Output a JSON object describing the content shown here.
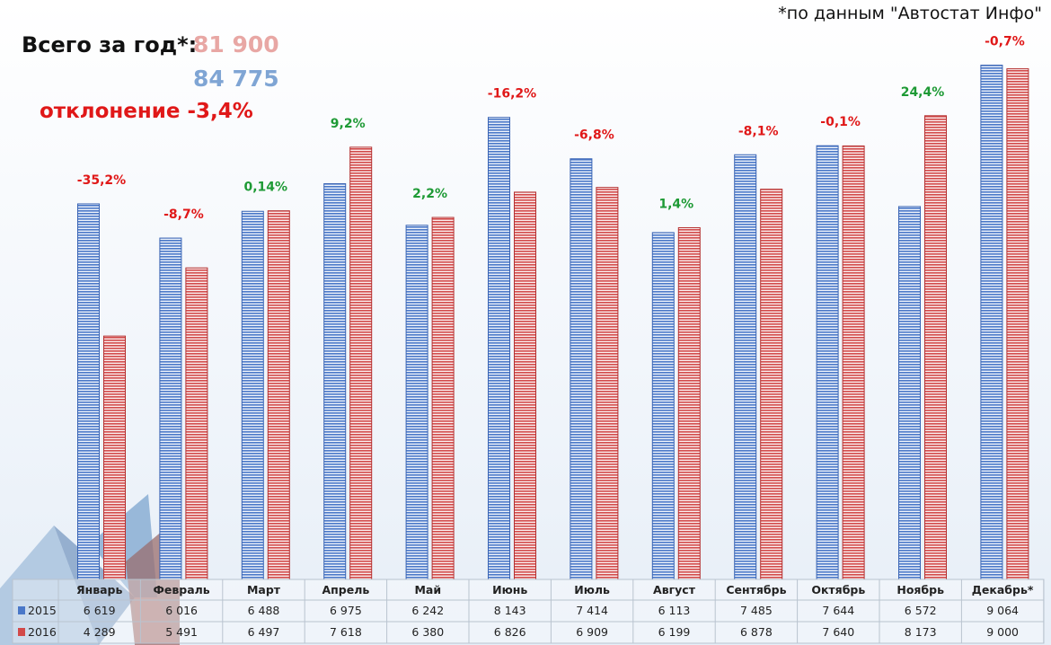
{
  "note": "*по данным \"Автостат Инфо\"",
  "summary": {
    "label": "Всего за год*:",
    "total_2016": "81 900",
    "total_2015": "84 775",
    "deviation_label": "отклонение -3,4%"
  },
  "colors": {
    "series_2015": "#4a78c8",
    "series_2016": "#d24a4a",
    "positive": "#1e9a35",
    "negative": "#e01818"
  },
  "chart_data": {
    "type": "bar",
    "title": "",
    "xlabel": "",
    "ylabel": "",
    "ylim": [
      0,
      9500
    ],
    "categories": [
      "Январь",
      "Февраль",
      "Март",
      "Апрель",
      "Май",
      "Июнь",
      "Июль",
      "Август",
      "Сентябрь",
      "Октябрь",
      "Ноябрь",
      "Декабрь*"
    ],
    "series": [
      {
        "name": "2015",
        "values": [
          6619,
          6016,
          6488,
          6975,
          6242,
          8143,
          7414,
          6113,
          7485,
          7644,
          6572,
          9064
        ],
        "labels": [
          "6 619",
          "6 016",
          "6 488",
          "6 975",
          "6 242",
          "8 143",
          "7 414",
          "6 113",
          "7 485",
          "7 644",
          "6 572",
          "9 064"
        ]
      },
      {
        "name": "2016",
        "values": [
          4289,
          5491,
          6497,
          7618,
          6380,
          6826,
          6909,
          6199,
          6878,
          7640,
          8173,
          9000
        ],
        "labels": [
          "4 289",
          "5 491",
          "6 497",
          "7 618",
          "6 380",
          "6 826",
          "6 909",
          "6 199",
          "6 878",
          "7 640",
          "8 173",
          "9 000"
        ]
      }
    ],
    "changes": [
      "-35,2%",
      "-8,7%",
      "0,14%",
      "9,2%",
      "2,2%",
      "-16,2%",
      "-6,8%",
      "1,4%",
      "-8,1%",
      "-0,1%",
      "24,4%",
      "-0,7%"
    ],
    "table": true,
    "legend": "table-left",
    "grid": false
  }
}
